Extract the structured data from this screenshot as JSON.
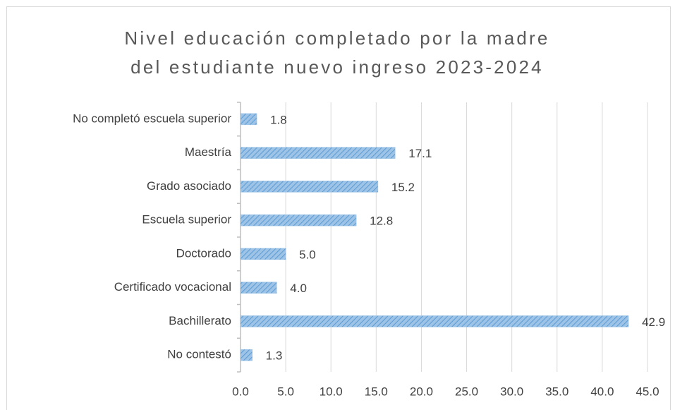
{
  "chart_data": {
    "type": "bar",
    "orientation": "horizontal",
    "title": [
      "Nivel educación completado por la madre",
      "del estudiante nuevo ingreso 2023-2024"
    ],
    "categories": [
      "No completó escuela superior",
      "Maestría",
      "Grado asociado",
      "Escuela superior",
      "Doctorado",
      "Certificado vocacional",
      "Bachillerato",
      "No contestó"
    ],
    "values": [
      1.8,
      17.1,
      15.2,
      12.8,
      5,
      4,
      42.9,
      1.3
    ],
    "value_labels": [
      "1.8",
      "17.1",
      "15.2",
      "12.8",
      "5.0",
      "4.0",
      "42.9",
      "1.3"
    ],
    "color": "#9dc3e6",
    "hatch_color": "#5b9bd5",
    "xlim": [
      0,
      45
    ],
    "xticks": [
      {
        "value": 0,
        "label": "0.0"
      },
      {
        "value": 5,
        "label": "5.0"
      },
      {
        "value": 10,
        "label": "10.0"
      },
      {
        "value": 15,
        "label": "15.0"
      },
      {
        "value": 20,
        "label": "20.0"
      },
      {
        "value": 25,
        "label": "25.0"
      },
      {
        "value": 30,
        "label": "30.0"
      },
      {
        "value": 35,
        "label": "35.0"
      },
      {
        "value": 40,
        "label": "40.0"
      },
      {
        "value": 45,
        "label": "45.0"
      }
    ],
    "grid": true
  }
}
